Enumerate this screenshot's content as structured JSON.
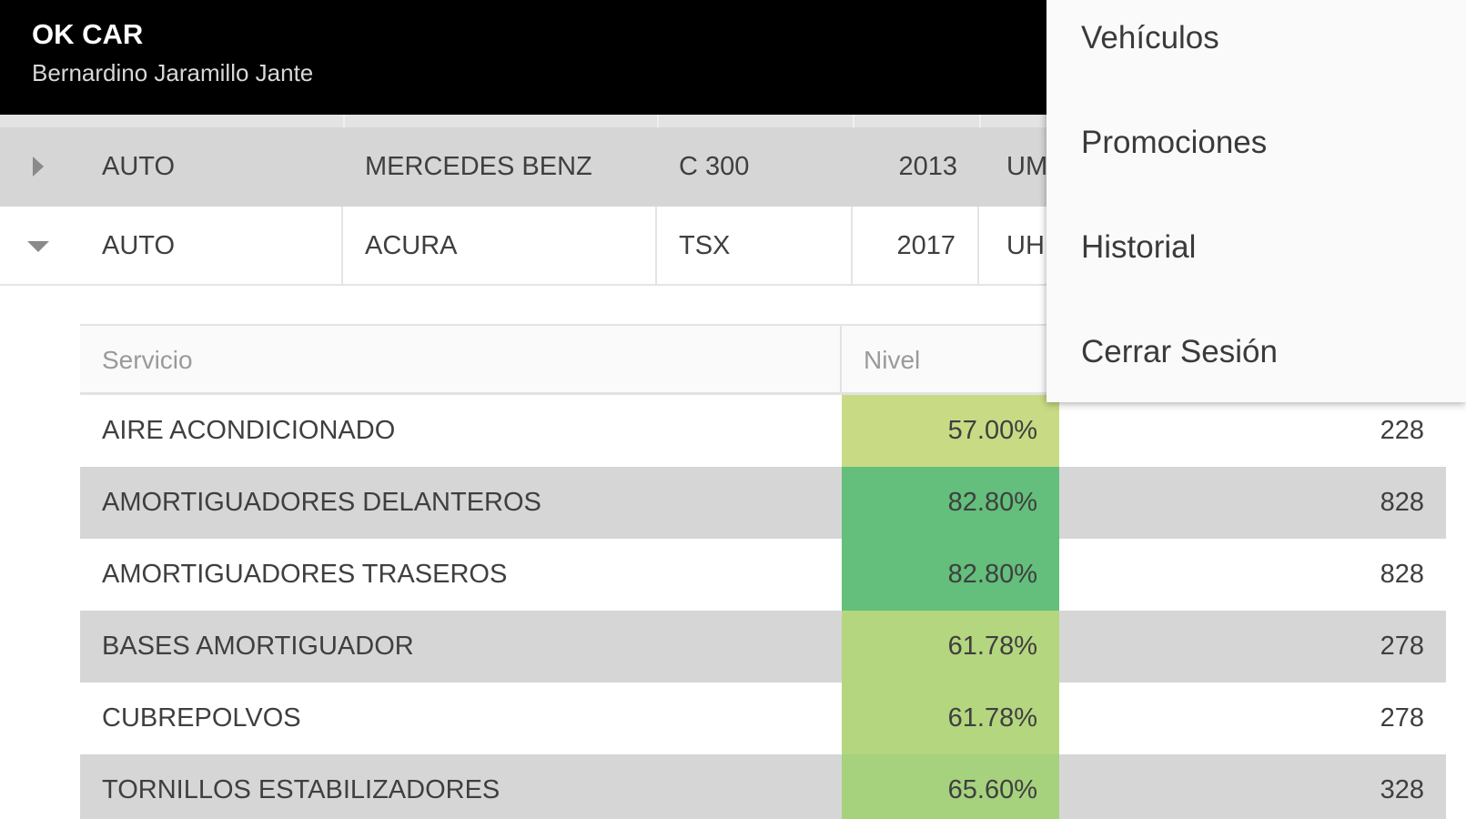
{
  "header": {
    "title": "OK CAR",
    "subtitle": "Bernardino Jaramillo Jante"
  },
  "vehicles": [
    {
      "type": "AUTO",
      "brand": "MERCEDES BENZ",
      "model": "C 300",
      "year": "2013",
      "plate": "UM",
      "expanded": false
    },
    {
      "type": "AUTO",
      "brand": "ACURA",
      "model": "TSX",
      "year": "2017",
      "plate": "UH",
      "expanded": true
    }
  ],
  "services": {
    "headers": {
      "service": "Servicio",
      "level": "Nivel"
    },
    "rows": [
      {
        "name": "AIRE ACONDICIONADO",
        "level": "57.00%",
        "level_value": 57.0,
        "level_color": "#c8db84",
        "amount": "228"
      },
      {
        "name": "AMORTIGUADORES DELANTEROS",
        "level": "82.80%",
        "level_color": "#63bf7b",
        "level_value": 82.8,
        "amount": "828"
      },
      {
        "name": "AMORTIGUADORES TRASEROS",
        "level": "82.80%",
        "level_color": "#63bf7b",
        "level_value": 82.8,
        "amount": "828"
      },
      {
        "name": "BASES AMORTIGUADOR",
        "level": "61.78%",
        "level_color": "#b4d67f",
        "level_value": 61.78,
        "amount": "278"
      },
      {
        "name": "CUBREPOLVOS",
        "level": "61.78%",
        "level_color": "#b4d67f",
        "level_value": 61.78,
        "amount": "278"
      },
      {
        "name": "TORNILLOS ESTABILIZADORES",
        "level": "65.60%",
        "level_color": "#a6d27e",
        "level_value": 65.6,
        "amount": "328"
      }
    ]
  },
  "menu": {
    "items": [
      {
        "label": "Vehículos"
      },
      {
        "label": "Promociones"
      },
      {
        "label": "Historial"
      },
      {
        "label": "Cerrar Sesión"
      }
    ]
  },
  "colors": {
    "header_bg": "#000000",
    "row_alt": "#d6d6d6",
    "menu_bg": "#fafafa"
  }
}
